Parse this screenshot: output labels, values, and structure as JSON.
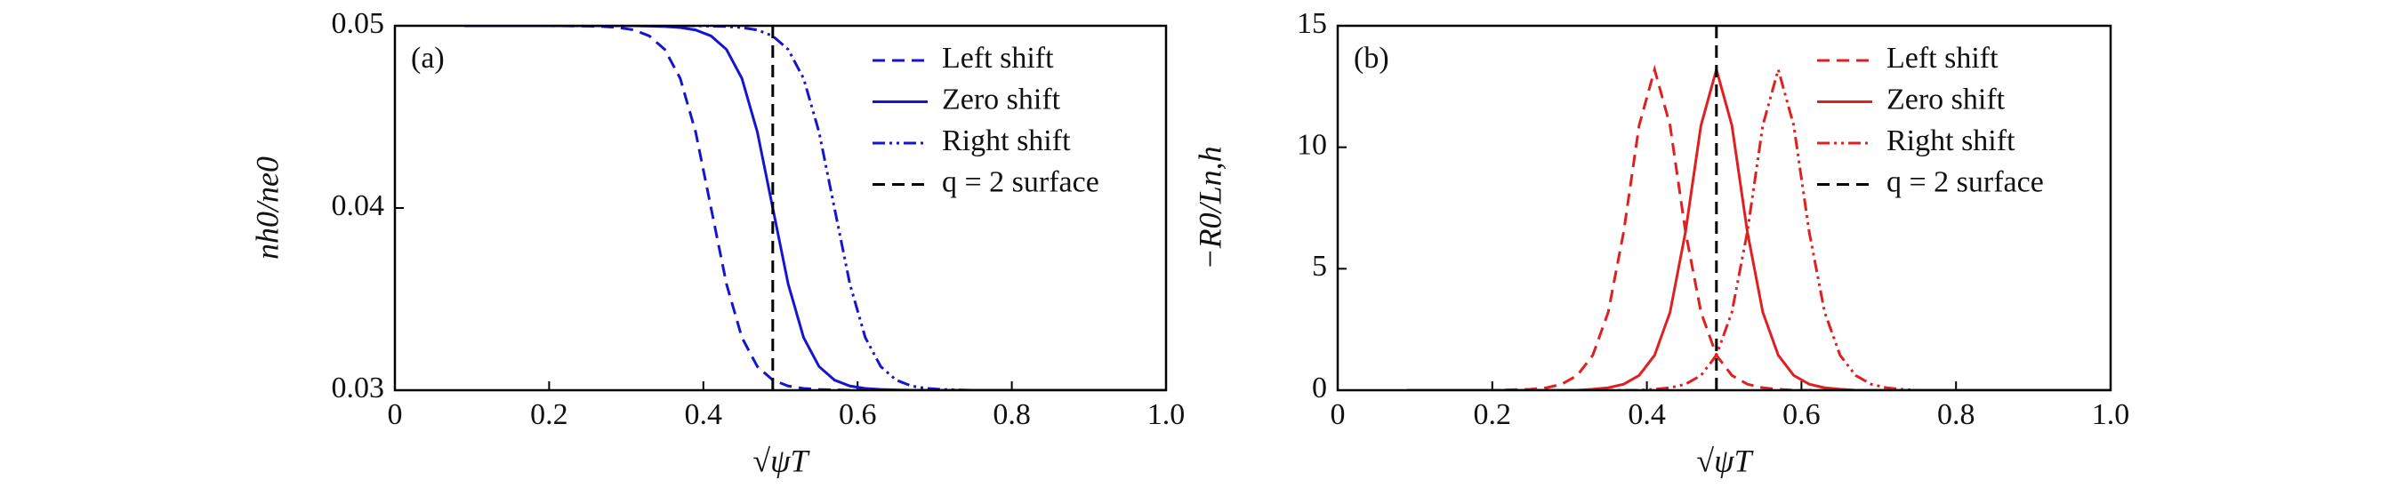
{
  "chart_data": [
    {
      "type": "line",
      "panel_label": "(a)",
      "xlabel": "√ψT",
      "ylabel": "nh0/ne0",
      "xlim": [
        0,
        1.0
      ],
      "ylim": [
        0.03,
        0.05
      ],
      "xticks": [
        0,
        0.2,
        0.4,
        0.6,
        0.8,
        {
          "value": 1.0,
          "label": "1.0"
        }
      ],
      "yticks": [
        0.03,
        0.04,
        0.05
      ],
      "legend": "upper right",
      "x": [
        0.09,
        0.15,
        0.2,
        0.25,
        0.27,
        0.29,
        0.31,
        0.33,
        0.35,
        0.37,
        0.39,
        0.41,
        0.43,
        0.45,
        0.47,
        0.49,
        0.51,
        0.53,
        0.55,
        0.57,
        0.59,
        0.61,
        0.63,
        0.65,
        0.67,
        0.69,
        0.71,
        0.73,
        0.75,
        0.77,
        0.8,
        0.85,
        0.9,
        1.0
      ],
      "series": [
        {
          "name": "Left shift",
          "color": "#1515d0",
          "dash": "dashed",
          "values": [
            0.05,
            0.05,
            0.05,
            0.04998,
            0.04996,
            0.0499,
            0.04977,
            0.04944,
            0.0487,
            0.04711,
            0.04417,
            0.04,
            0.03583,
            0.03289,
            0.0313,
            0.03056,
            0.03023,
            0.0301,
            0.03004,
            0.03002,
            0.03,
            0.03,
            0.03,
            0.03,
            0.03,
            0.03,
            0.03,
            0.03,
            0.03,
            0.03,
            0.03,
            0.03,
            0.03,
            0.03
          ]
        },
        {
          "name": "Zero shift",
          "color": "#1515d0",
          "dash": "solid",
          "values": [
            0.05,
            0.05,
            0.05,
            0.05,
            0.05,
            0.05,
            0.05,
            0.04998,
            0.04996,
            0.0499,
            0.04977,
            0.04944,
            0.0487,
            0.04711,
            0.04417,
            0.04,
            0.03583,
            0.03289,
            0.0313,
            0.03056,
            0.03023,
            0.0301,
            0.03004,
            0.03002,
            0.03,
            0.03,
            0.03,
            0.03,
            0.03,
            0.03,
            0.03,
            0.03,
            0.03,
            0.03
          ]
        },
        {
          "name": "Right shift",
          "color": "#1515d0",
          "dash": "dashdotdot",
          "values": [
            0.05,
            0.05,
            0.05,
            0.05,
            0.05,
            0.05,
            0.05,
            0.05,
            0.05,
            0.05,
            0.05,
            0.04998,
            0.04996,
            0.0499,
            0.04977,
            0.04944,
            0.0487,
            0.04711,
            0.04417,
            0.04,
            0.03583,
            0.03289,
            0.0313,
            0.03056,
            0.03023,
            0.0301,
            0.03004,
            0.03002,
            0.03,
            0.03,
            0.03,
            0.03,
            0.03,
            0.03
          ]
        },
        {
          "name": "q = 2 surface",
          "color": "#000000",
          "dash": "dashed",
          "vline": 0.49
        }
      ]
    },
    {
      "type": "line",
      "panel_label": "(b)",
      "xlabel": "√ψT",
      "ylabel": "−R0/Ln,h",
      "xlim": [
        0,
        1.0
      ],
      "ylim": [
        0,
        15
      ],
      "xticks": [
        0,
        0.2,
        0.4,
        0.6,
        0.8,
        {
          "value": 1.0,
          "label": "1.0"
        }
      ],
      "yticks": [
        0,
        5,
        10,
        15
      ],
      "legend": "upper right",
      "x": [
        0.09,
        0.15,
        0.2,
        0.25,
        0.27,
        0.29,
        0.31,
        0.33,
        0.35,
        0.37,
        0.39,
        0.41,
        0.43,
        0.45,
        0.47,
        0.49,
        0.51,
        0.53,
        0.55,
        0.57,
        0.59,
        0.61,
        0.63,
        0.65,
        0.67,
        0.69,
        0.71,
        0.73,
        0.75,
        0.77,
        0.8,
        0.85,
        0.9,
        1.0
      ],
      "series": [
        {
          "name": "Left shift",
          "color": "#e02020",
          "dash": "dashed",
          "values": [
            0,
            0,
            0,
            0.04,
            0.1,
            0.25,
            0.61,
            1.44,
            3.21,
            6.52,
            10.9,
            13.2,
            10.9,
            6.52,
            3.21,
            1.44,
            0.61,
            0.25,
            0.1,
            0.04,
            0,
            0,
            0,
            0,
            0,
            0,
            0,
            0,
            0,
            0,
            0,
            0,
            0,
            0
          ]
        },
        {
          "name": "Zero shift",
          "color": "#e02020",
          "dash": "solid",
          "values": [
            0,
            0,
            0,
            0,
            0,
            0,
            0,
            0.04,
            0.1,
            0.25,
            0.61,
            1.44,
            3.21,
            6.52,
            10.9,
            13.2,
            10.9,
            6.52,
            3.21,
            1.44,
            0.61,
            0.25,
            0.1,
            0.04,
            0,
            0,
            0,
            0,
            0,
            0,
            0,
            0,
            0,
            0
          ]
        },
        {
          "name": "Right shift",
          "color": "#e02020",
          "dash": "dashdotdot",
          "values": [
            0,
            0,
            0,
            0,
            0,
            0,
            0,
            0,
            0,
            0,
            0,
            0.04,
            0.1,
            0.25,
            0.61,
            1.44,
            3.21,
            6.52,
            10.9,
            13.2,
            10.9,
            6.52,
            3.21,
            1.44,
            0.61,
            0.25,
            0.1,
            0.04,
            0,
            0,
            0,
            0,
            0,
            0
          ]
        },
        {
          "name": "q = 2 surface",
          "color": "#000000",
          "dash": "dashed",
          "vline": 0.49
        }
      ]
    }
  ]
}
